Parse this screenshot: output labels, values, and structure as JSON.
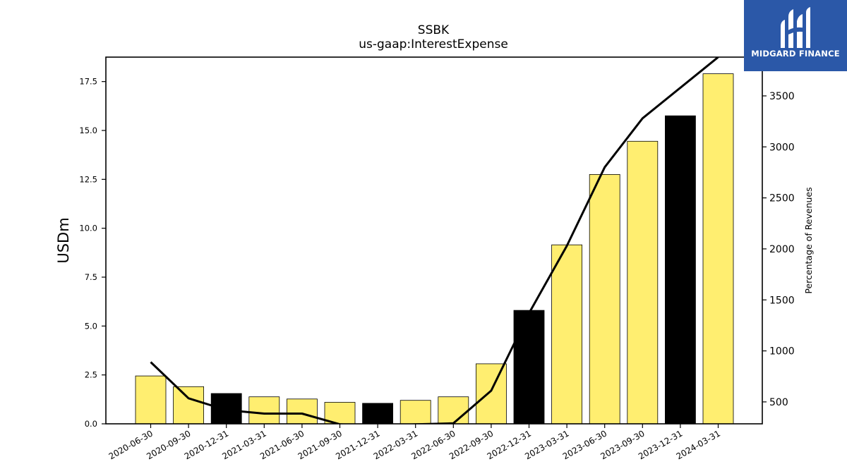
{
  "chart_data": {
    "type": "bar",
    "title": "SSBK",
    "subtitle": "us-gaap:InterestExpense",
    "ylabel": "USDm",
    "y2label": "Percentage of Revenues",
    "categories": [
      "2020-06-30",
      "2020-09-30",
      "2020-12-31",
      "2021-03-31",
      "2021-06-30",
      "2021-09-30",
      "2021-12-31",
      "2022-03-31",
      "2022-06-30",
      "2022-09-30",
      "2022-12-31",
      "2023-03-31",
      "2023-06-30",
      "2023-09-30",
      "2023-12-31",
      "2024-03-31"
    ],
    "series": [
      {
        "type": "bar",
        "axis": "left",
        "values": [
          2.45,
          1.9,
          1.55,
          1.38,
          1.27,
          1.1,
          1.05,
          1.2,
          1.38,
          3.07,
          5.8,
          9.15,
          12.75,
          14.45,
          15.75,
          17.9
        ],
        "colors": [
          "#ffee70",
          "#ffee70",
          "#000000",
          "#ffee70",
          "#ffee70",
          "#ffee70",
          "#000000",
          "#ffee70",
          "#ffee70",
          "#ffee70",
          "#000000",
          "#ffee70",
          "#ffee70",
          "#ffee70",
          "#000000",
          "#ffee70"
        ]
      },
      {
        "type": "line",
        "axis": "right",
        "color": "#000000",
        "values": [
          890,
          535,
          420,
          385,
          385,
          280,
          260,
          280,
          290,
          610,
          1370,
          2030,
          2800,
          3280,
          3580,
          3880
        ]
      }
    ],
    "ylim": [
      0,
      18.75
    ],
    "y_ticks": [
      "0.0",
      "2.5",
      "5.0",
      "7.5",
      "10.0",
      "12.5",
      "15.0",
      "17.5"
    ],
    "y2lim": [
      285,
      3880
    ],
    "y2_ticks": [
      "500",
      "1000",
      "1500",
      "2000",
      "2500",
      "3000",
      "3500"
    ],
    "grid": false,
    "legend": "none"
  },
  "logo": {
    "text": "MIDGARD FINANCE",
    "colors": {
      "background": "#2b58a8",
      "foreground": "#ffffff"
    }
  }
}
